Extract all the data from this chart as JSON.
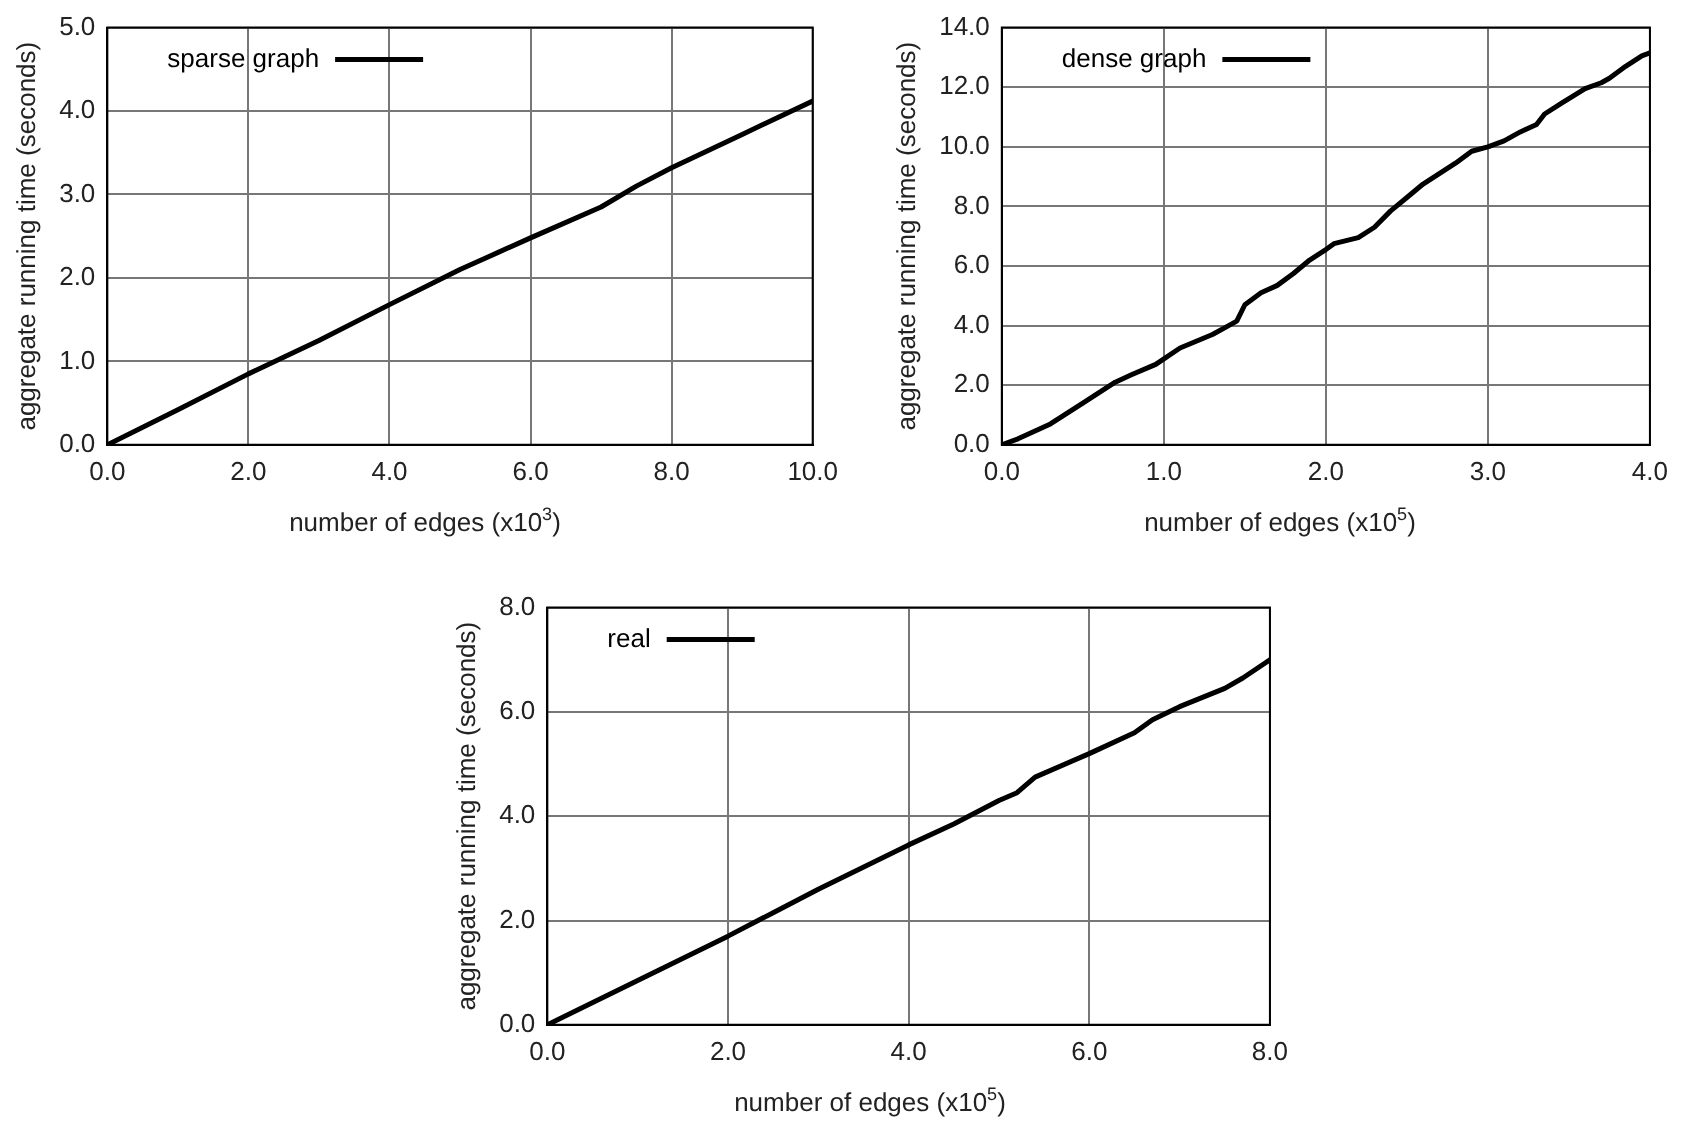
{
  "chart_data": [
    {
      "type": "line",
      "xlabel": "number of edges (x10$^{3}$)",
      "ylabel": "aggregate running time (seconds)",
      "xlim": [
        0,
        10
      ],
      "ylim": [
        0,
        5
      ],
      "xticks": [
        {
          "value": 0,
          "label": "0.0"
        },
        {
          "value": 2,
          "label": "2.0"
        },
        {
          "value": 4,
          "label": "4.0"
        },
        {
          "value": 6,
          "label": "6.0"
        },
        {
          "value": 8,
          "label": "8.0"
        },
        {
          "value": 10,
          "label": "10.0"
        }
      ],
      "yticks": [
        {
          "value": 0,
          "label": "0.0"
        },
        {
          "value": 1,
          "label": "1.0"
        },
        {
          "value": 2,
          "label": "2.0"
        },
        {
          "value": 3,
          "label": "3.0"
        },
        {
          "value": 4,
          "label": "4.0"
        },
        {
          "value": 5,
          "label": "5.0"
        }
      ],
      "grid": true,
      "legend": "top left",
      "marker": "none",
      "line_style": "solid",
      "series": [
        {
          "name": "sparse graph",
          "color": "#000000",
          "x": [
            0,
            1,
            2,
            3,
            4,
            5,
            6,
            7,
            7.5,
            8,
            9,
            10
          ],
          "values": [
            0,
            0.42,
            0.85,
            1.25,
            1.68,
            2.1,
            2.48,
            2.85,
            3.1,
            3.32,
            3.72,
            4.12
          ]
        }
      ]
    },
    {
      "type": "line",
      "xlabel": "number of edges (x10$^{5}$)",
      "ylabel": "aggregate running time (seconds)",
      "xlim": [
        0,
        4
      ],
      "ylim": [
        0,
        14
      ],
      "xticks": [
        {
          "value": 0,
          "label": "0.0"
        },
        {
          "value": 1,
          "label": "1.0"
        },
        {
          "value": 2,
          "label": "2.0"
        },
        {
          "value": 3,
          "label": "3.0"
        },
        {
          "value": 4,
          "label": "4.0"
        }
      ],
      "yticks": [
        {
          "value": 0,
          "label": "0.0"
        },
        {
          "value": 2,
          "label": "2.0"
        },
        {
          "value": 4,
          "label": "4.0"
        },
        {
          "value": 6,
          "label": "6.0"
        },
        {
          "value": 8,
          "label": "8.0"
        },
        {
          "value": 10,
          "label": "10.0"
        },
        {
          "value": 12,
          "label": "12.0"
        },
        {
          "value": 14,
          "label": "14.0"
        }
      ],
      "grid": true,
      "legend": "top left",
      "marker": "none",
      "line_style": "solid",
      "series": [
        {
          "name": "dense graph",
          "color": "#000000",
          "x": [
            0,
            0.1,
            0.3,
            0.5,
            0.7,
            0.8,
            0.95,
            1.1,
            1.3,
            1.4,
            1.45,
            1.5,
            1.6,
            1.7,
            1.8,
            1.9,
            2.0,
            2.05,
            2.2,
            2.3,
            2.4,
            2.5,
            2.6,
            2.7,
            2.8,
            2.9,
            3.0,
            3.1,
            3.2,
            3.3,
            3.35,
            3.45,
            3.6,
            3.7,
            3.75,
            3.85,
            3.95,
            4.0
          ],
          "values": [
            0,
            0.2,
            0.7,
            1.4,
            2.1,
            2.35,
            2.7,
            3.25,
            3.7,
            4.0,
            4.15,
            4.7,
            5.1,
            5.35,
            5.75,
            6.2,
            6.55,
            6.75,
            6.95,
            7.3,
            7.85,
            8.3,
            8.75,
            9.1,
            9.45,
            9.85,
            10.0,
            10.2,
            10.5,
            10.75,
            11.1,
            11.45,
            11.95,
            12.15,
            12.3,
            12.7,
            13.05,
            13.15
          ]
        }
      ]
    },
    {
      "type": "line",
      "xlabel": "number of edges (x10$^{5}$)",
      "ylabel": "aggregate running time (seconds)",
      "xlim": [
        0,
        8
      ],
      "ylim": [
        0,
        8
      ],
      "xticks": [
        {
          "value": 0,
          "label": "0.0"
        },
        {
          "value": 2,
          "label": "2.0"
        },
        {
          "value": 4,
          "label": "4.0"
        },
        {
          "value": 6,
          "label": "6.0"
        },
        {
          "value": 8,
          "label": "8.0"
        }
      ],
      "yticks": [
        {
          "value": 0,
          "label": "0.0"
        },
        {
          "value": 2,
          "label": "2.0"
        },
        {
          "value": 4,
          "label": "4.0"
        },
        {
          "value": 6,
          "label": "6.0"
        },
        {
          "value": 8,
          "label": "8.0"
        }
      ],
      "grid": true,
      "legend": "top left",
      "marker": "none",
      "line_style": "solid",
      "series": [
        {
          "name": "real",
          "color": "#000000",
          "x": [
            0,
            1,
            2,
            2.5,
            3,
            4,
            4.5,
            5,
            5.2,
            5.4,
            6,
            6.5,
            6.7,
            7,
            7.5,
            7.7,
            8
          ],
          "values": [
            0,
            0.85,
            1.7,
            2.15,
            2.6,
            3.45,
            3.85,
            4.3,
            4.45,
            4.75,
            5.2,
            5.6,
            5.85,
            6.1,
            6.45,
            6.65,
            7.0
          ]
        }
      ]
    }
  ]
}
